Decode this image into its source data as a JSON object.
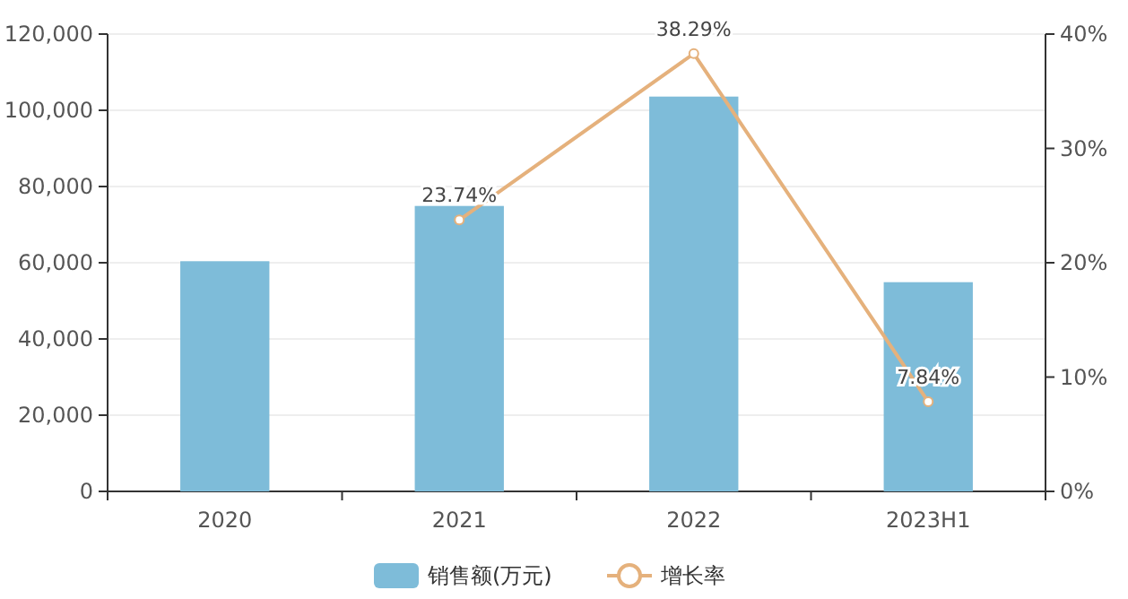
{
  "chart_data": {
    "type": "bar",
    "categories": [
      "2020",
      "2021",
      "2022",
      "2023H1"
    ],
    "series": [
      {
        "name": "销售额(万元)",
        "color": "#7ebcd9",
        "values": [
          60400,
          74900,
          103600,
          54900
        ]
      },
      {
        "name": "增长率",
        "type": "line",
        "axis": "y2",
        "color": "#e5b17c",
        "values": [
          null,
          23.74,
          38.29,
          7.84
        ],
        "value_labels": [
          null,
          "23.74%",
          "38.29%",
          "7.84%"
        ]
      }
    ],
    "ylim": [
      0,
      120000
    ],
    "yticks": [
      {
        "value": 0,
        "label": "0"
      },
      {
        "value": 20000,
        "label": "20,000"
      },
      {
        "value": 40000,
        "label": "40,000"
      },
      {
        "value": 60000,
        "label": "60,000"
      },
      {
        "value": 80000,
        "label": "80,000"
      },
      {
        "value": 100000,
        "label": "100,000"
      },
      {
        "value": 120000,
        "label": "120,000"
      }
    ],
    "y2lim": [
      0,
      40
    ],
    "y2ticks": [
      {
        "value": 0,
        "label": "0%"
      },
      {
        "value": 10,
        "label": "10%"
      },
      {
        "value": 20,
        "label": "20%"
      },
      {
        "value": 30,
        "label": "30%"
      },
      {
        "value": 40,
        "label": "40%"
      }
    ],
    "grid": "y",
    "legend": "bottom",
    "marker": "circle",
    "line_style": "solid"
  }
}
